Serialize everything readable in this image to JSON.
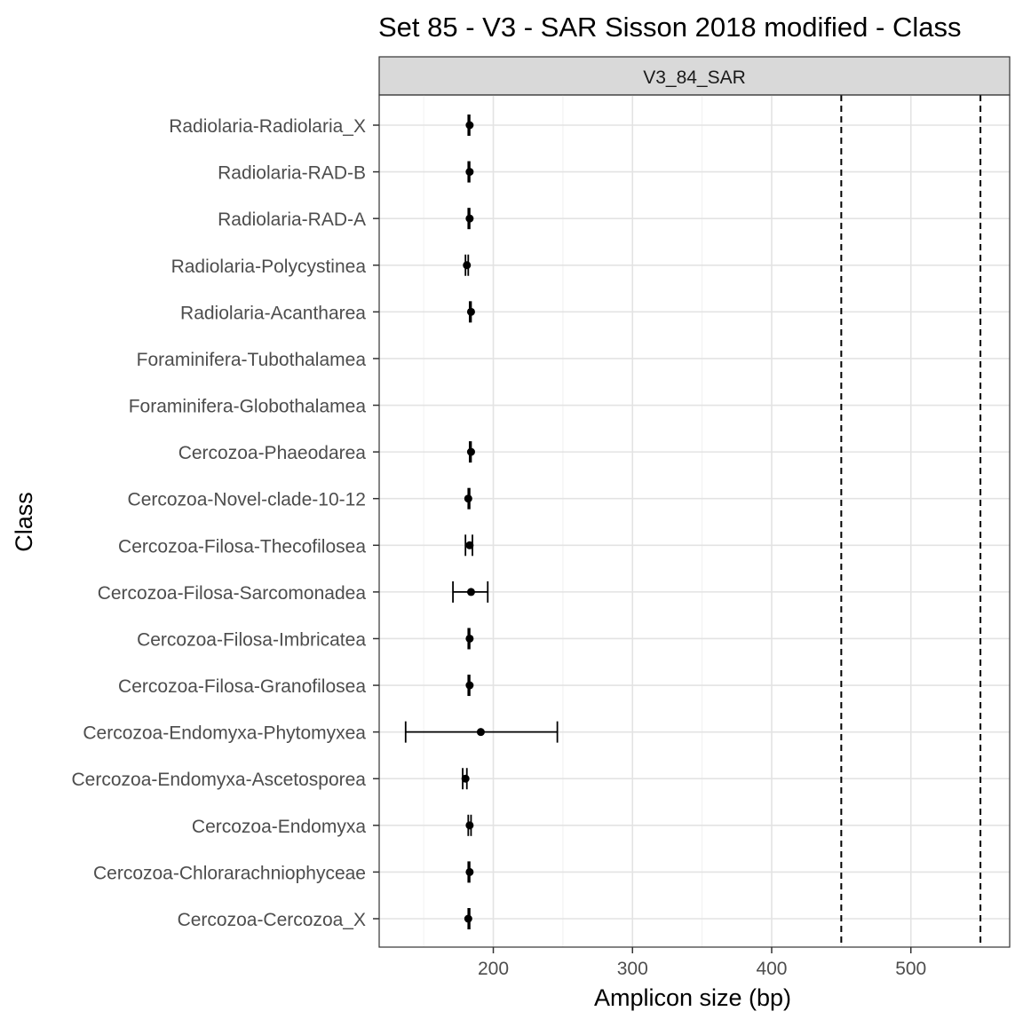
{
  "chart_data": {
    "type": "errorbar",
    "title": "Set 85 - V3 - SAR Sisson 2018 modified - Class",
    "panel_label": "V3_84_SAR",
    "xlabel": "Amplicon size (bp)",
    "ylabel": "Class",
    "xlim": [
      118,
      571
    ],
    "x_ticks": [
      200,
      300,
      400,
      500
    ],
    "x_tick_labels": [
      "200",
      "300",
      "400",
      "500"
    ],
    "grid": true,
    "reference_lines": [
      450,
      550
    ],
    "categories": [
      "Radiolaria-Radiolaria_X",
      "Radiolaria-RAD-B",
      "Radiolaria-RAD-A",
      "Radiolaria-Polycystinea",
      "Radiolaria-Acantharea",
      "Foraminifera-Tubothalamea",
      "Foraminifera-Globothalamea",
      "Cercozoa-Phaeodarea",
      "Cercozoa-Novel-clade-10-12",
      "Cercozoa-Filosa-Thecofilosea",
      "Cercozoa-Filosa-Sarcomonadea",
      "Cercozoa-Filosa-Imbricatea",
      "Cercozoa-Filosa-Granofilosea",
      "Cercozoa-Endomyxa-Phytomyxea",
      "Cercozoa-Endomyxa-Ascetosporea",
      "Cercozoa-Endomyxa",
      "Cercozoa-Chlorarachniophyceae",
      "Cercozoa-Cercozoa_X"
    ],
    "points": [
      {
        "mean": 183,
        "min": 182,
        "max": 183
      },
      {
        "mean": 183,
        "min": 182,
        "max": 183
      },
      {
        "mean": 183,
        "min": 182,
        "max": 183
      },
      {
        "mean": 181,
        "min": 180,
        "max": 182
      },
      {
        "mean": 184,
        "min": 183,
        "max": 184
      },
      null,
      null,
      {
        "mean": 184,
        "min": 183,
        "max": 184
      },
      {
        "mean": 182,
        "min": 182,
        "max": 183
      },
      {
        "mean": 183,
        "min": 180,
        "max": 185
      },
      {
        "mean": 184,
        "min": 171,
        "max": 196
      },
      {
        "mean": 183,
        "min": 182,
        "max": 183
      },
      {
        "mean": 183,
        "min": 182,
        "max": 183
      },
      {
        "mean": 191,
        "min": 137,
        "max": 246
      },
      {
        "mean": 180,
        "min": 178,
        "max": 181
      },
      {
        "mean": 183,
        "min": 182,
        "max": 184
      },
      {
        "mean": 183,
        "min": 182,
        "max": 183
      },
      {
        "mean": 182,
        "min": 182,
        "max": 183
      }
    ]
  }
}
